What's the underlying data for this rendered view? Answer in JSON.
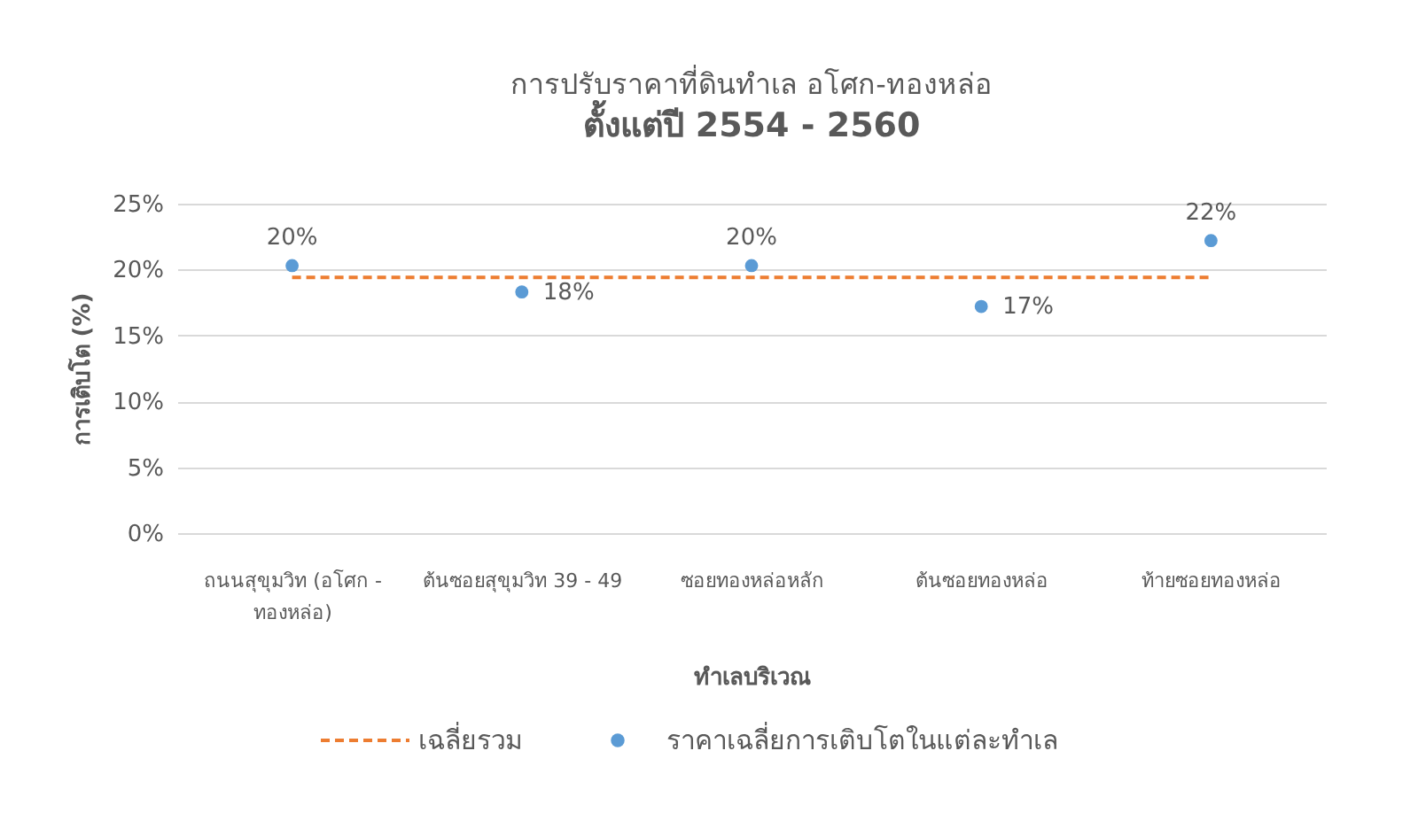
{
  "chart_data": {
    "type": "scatter",
    "title": "การปรับราคาที่ดินทำเล อโศก-ทองหล่อ",
    "subtitle": "ตั้งแต่ปี 2554 - 2560",
    "xlabel": "ทำเลบริเวณ",
    "ylabel": "การเติบโต (%)",
    "categories": [
      "ถนนสุขุมวิท (อโศก - ทองหล่อ)",
      "ต้นซอยสุขุมวิท 39 - 49",
      "ซอยทองหล่อหลัก",
      "ต้นซอยทองหล่อ",
      "ท้ายซอยทองหล่อ"
    ],
    "series": [
      {
        "name": "เฉลี่ยรวม",
        "type": "line",
        "color": "#ed7d31",
        "line_style": "dashed",
        "values": [
          19.4,
          19.4,
          19.4,
          19.4,
          19.4
        ]
      },
      {
        "name": "ราคาเฉลี่ยการเติบโตในแต่ละทำเล",
        "color": "#5b9bd5",
        "marker": "circle",
        "values": [
          20.3,
          18.3,
          20.3,
          17.2,
          22.2
        ],
        "value_labels": [
          "20%",
          "18%",
          "20%",
          "17%",
          "22%"
        ]
      }
    ],
    "ylim": [
      0,
      25
    ],
    "yticks": [
      {
        "value": 0,
        "label": "0%"
      },
      {
        "value": 5,
        "label": "5%"
      },
      {
        "value": 10,
        "label": "10%"
      },
      {
        "value": 15,
        "label": "15%"
      },
      {
        "value": 20,
        "label": "20%"
      },
      {
        "value": 25,
        "label": "25%"
      }
    ],
    "grid": "y",
    "legend": "bottom"
  }
}
